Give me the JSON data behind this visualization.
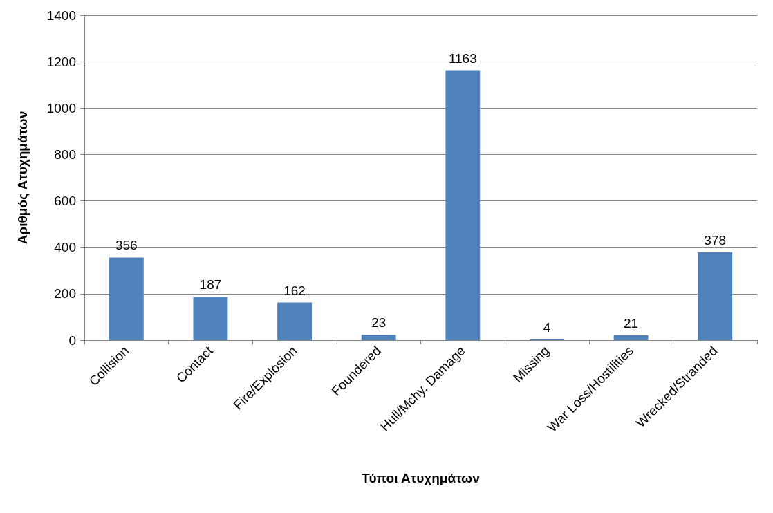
{
  "chart_data": {
    "type": "bar",
    "xlabel": "Τύποι Ατυχημάτων",
    "ylabel": "Αριθμός Ατυχημάτων",
    "categories": [
      "Collision",
      "Contact",
      "Fire/Explosion",
      "Foundered",
      "Hull/Mchy. Damage",
      "Missing",
      "War Loss/Hostilities",
      "Wrecked/Stranded"
    ],
    "values": [
      356,
      187,
      162,
      23,
      1163,
      4,
      21,
      378
    ],
    "color": "#4f81bd",
    "ylim": [
      0,
      1400
    ],
    "yticks": [
      0,
      200,
      400,
      600,
      800,
      1000,
      1200,
      1400
    ],
    "grid": "y",
    "data_labels": true
  }
}
